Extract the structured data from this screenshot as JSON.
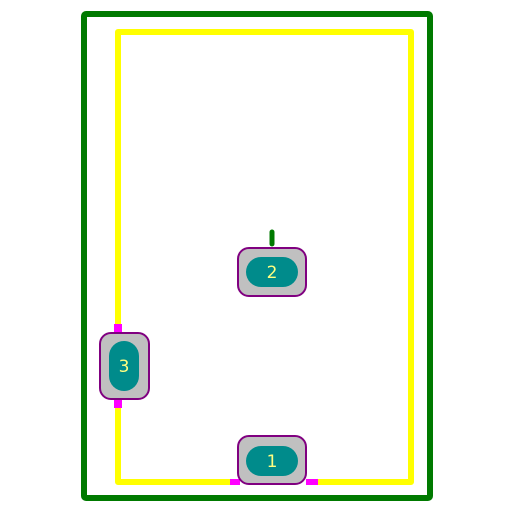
{
  "colors": {
    "background": "#ffffff",
    "courtyard": "#007a00",
    "silkscreen": "#ffff00",
    "pad_fill": "#c0c0c0",
    "pad_outline": "#800080",
    "pad_copper": "#008b8b",
    "pad_text": "#ffff80",
    "keepout_mark": "#ff00ff"
  },
  "pads": [
    {
      "label": "1",
      "orientation": "horizontal"
    },
    {
      "label": "2",
      "orientation": "horizontal"
    },
    {
      "label": "3",
      "orientation": "vertical"
    }
  ],
  "icons": {
    "pin1_marker": "green-tick-icon"
  }
}
